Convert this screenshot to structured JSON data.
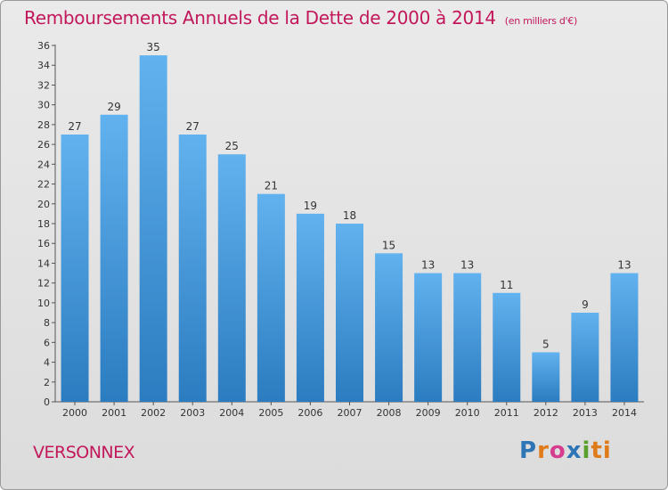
{
  "header": {
    "title": "Remboursements Annuels de la Dette de 2000 à 2014",
    "unit": "(en milliers d'€)"
  },
  "footer": {
    "place": "VERSONNEX",
    "logo_letters": [
      "P",
      "r",
      "o",
      "x",
      "i",
      "ti"
    ]
  },
  "chart_data": {
    "type": "bar",
    "title": "Remboursements Annuels de la Dette de 2000 à 2014",
    "subtitle": "(en milliers d'€)",
    "xlabel": "",
    "ylabel": "",
    "categories": [
      "2000",
      "2001",
      "2002",
      "2003",
      "2004",
      "2005",
      "2006",
      "2007",
      "2008",
      "2009",
      "2010",
      "2011",
      "2012",
      "2013",
      "2014"
    ],
    "values": [
      27,
      29,
      35,
      27,
      25,
      21,
      19,
      18,
      15,
      13,
      13,
      11,
      5,
      9,
      13
    ],
    "ylim": [
      0,
      36
    ],
    "yticks": [
      0,
      2,
      4,
      6,
      8,
      10,
      12,
      14,
      16,
      18,
      20,
      22,
      24,
      26,
      28,
      30,
      32,
      34,
      36
    ],
    "grid": false,
    "legend": "none",
    "bar_color_top": "#62b2ef",
    "bar_color_bottom": "#2b7cc0",
    "text_color": "#c2185b"
  }
}
